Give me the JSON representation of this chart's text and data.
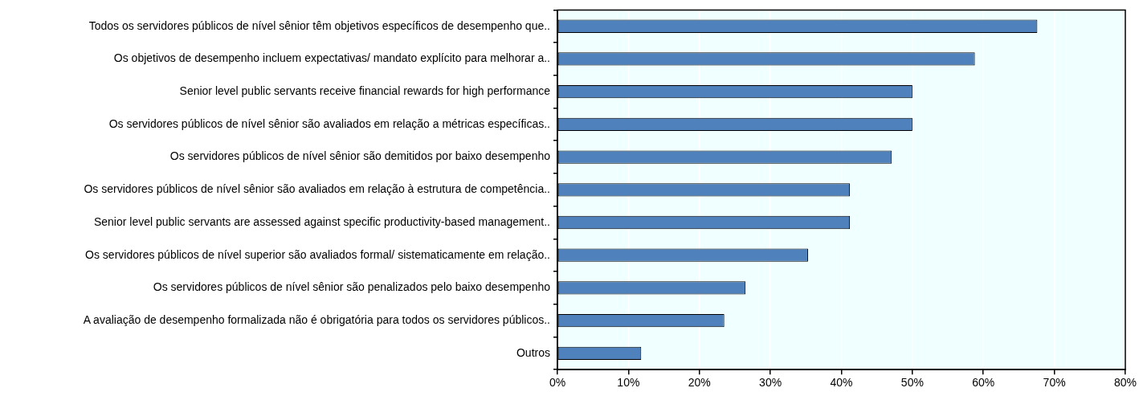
{
  "chart_data": {
    "type": "bar",
    "orientation": "horizontal",
    "categories": [
      "Todos os servidores públicos de nível sênior têm objetivos específicos de desempenho que..",
      "Os objetivos de desempenho incluem expectativas/ mandato explícito para melhorar a..",
      "Senior level public servants receive financial rewards for high performance",
      "Os servidores públicos de nível sênior são avaliados em relação a métricas específicas..",
      "Os servidores públicos de nível sênior são demitidos por baixo desempenho",
      "Os servidores públicos de nível sênior são avaliados em relação à estrutura de competência..",
      "Senior level public servants are assessed against specific productivity-based management..",
      "Os servidores públicos de nível superior são avaliados formal/ sistematicamente em relação..",
      "Os servidores públicos de nível sênior são penalizados pelo baixo desempenho",
      "A avaliação de desempenho formalizada não é obrigatória para todos os servidores públicos..",
      "Outros"
    ],
    "values": [
      67.6,
      58.8,
      50,
      50,
      47.1,
      41.2,
      41.2,
      35.3,
      26.5,
      23.5,
      11.8
    ],
    "color": "#4f81bd",
    "xlim": [
      0,
      80
    ],
    "xticks": [
      {
        "value": 0,
        "label": "0%"
      },
      {
        "value": 10,
        "label": "10%"
      },
      {
        "value": 20,
        "label": "20%"
      },
      {
        "value": 30,
        "label": "30%"
      },
      {
        "value": 40,
        "label": "40%"
      },
      {
        "value": 50,
        "label": "50%"
      },
      {
        "value": 60,
        "label": "60%"
      },
      {
        "value": 70,
        "label": "70%"
      },
      {
        "value": 80,
        "label": "80%"
      }
    ],
    "grid": "x",
    "legend": false
  }
}
